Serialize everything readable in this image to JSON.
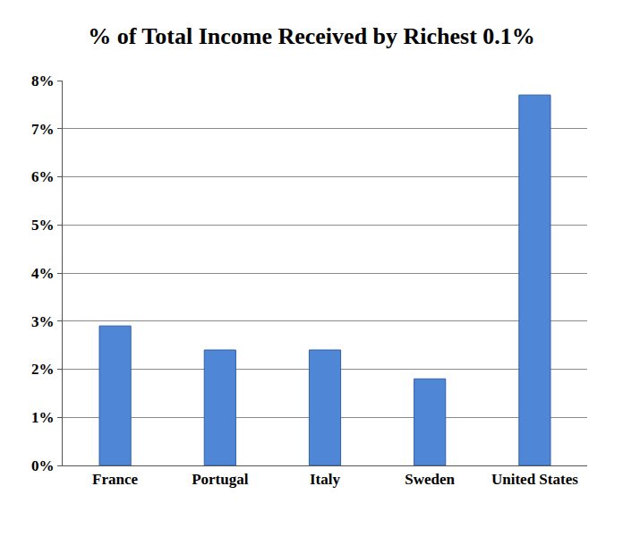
{
  "chart_data": {
    "type": "bar",
    "title": "% of Total Income Received by Richest 0.1%",
    "categories": [
      "France",
      "Portugal",
      "Italy",
      "Sweden",
      "United States"
    ],
    "values": [
      2.9,
      2.4,
      2.4,
      1.8,
      7.7
    ],
    "color": "#4f86d6",
    "ylim": [
      0,
      8
    ],
    "yticks": [
      {
        "value": 0,
        "label": "0%"
      },
      {
        "value": 1,
        "label": "1%"
      },
      {
        "value": 2,
        "label": "2%"
      },
      {
        "value": 3,
        "label": "3%"
      },
      {
        "value": 4,
        "label": "4%"
      },
      {
        "value": 5,
        "label": "5%"
      },
      {
        "value": 6,
        "label": "6%"
      },
      {
        "value": 7,
        "label": "7%"
      },
      {
        "value": 8,
        "label": "8%"
      }
    ],
    "grid": true
  }
}
